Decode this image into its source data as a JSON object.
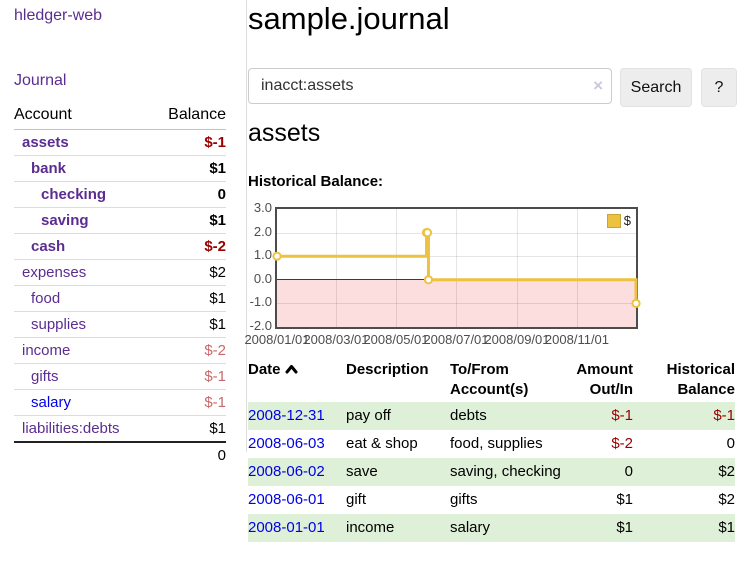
{
  "colors": {
    "link_purple": "#5c2d91",
    "link_blue": "#0000e6",
    "negative_strong": "#990000",
    "negative_soft": "#c86a6a",
    "row_shade_green": "#dff0d8",
    "chart_line_gold": "#edc240",
    "chart_negative_fill": "#fcdede",
    "chart_zero_line": "#8b1a1a",
    "button_bg": "#ededed"
  },
  "app": {
    "brand": "hledger-web",
    "nav": {
      "journal": "Journal"
    }
  },
  "sidebar": {
    "accounts_table": {
      "headers": {
        "account": "Account",
        "balance": "Balance"
      },
      "rows": [
        {
          "label": "assets",
          "balance": "$-1",
          "depth": 1,
          "bold": true,
          "neg": "strong"
        },
        {
          "label": "bank",
          "balance": "$1",
          "depth": 2,
          "bold": true,
          "neg": null
        },
        {
          "label": "checking",
          "balance": "0",
          "depth": 3,
          "bold": true,
          "neg": null
        },
        {
          "label": "saving",
          "balance": "$1",
          "depth": 3,
          "bold": true,
          "neg": null
        },
        {
          "label": "cash",
          "balance": "$-2",
          "depth": 2,
          "bold": true,
          "neg": "strong"
        },
        {
          "label": "expenses",
          "balance": "$2",
          "depth": 1,
          "bold": false,
          "neg": null
        },
        {
          "label": "food",
          "balance": "$1",
          "depth": 2,
          "bold": false,
          "neg": null
        },
        {
          "label": "supplies",
          "balance": "$1",
          "depth": 2,
          "bold": false,
          "neg": null
        },
        {
          "label": "income",
          "balance": "$-2",
          "depth": 1,
          "bold": false,
          "neg": "soft"
        },
        {
          "label": "gifts",
          "balance": "$-1",
          "depth": 2,
          "bold": false,
          "neg": "soft"
        },
        {
          "label": "salary",
          "balance": "$-1",
          "depth": 2,
          "bold": false,
          "neg": "soft",
          "unvisited": true
        },
        {
          "label": "liabilities:debts",
          "balance": "$1",
          "depth": 1,
          "bold": false,
          "neg": null
        }
      ],
      "total": "0"
    }
  },
  "main": {
    "page_title": "sample.journal",
    "search": {
      "value": "inacct:assets",
      "clear_label": "×",
      "search_button": "Search",
      "help_button": "?"
    },
    "account_heading": "assets",
    "section_label": "Historical Balance:",
    "register": {
      "headers": {
        "date": "Date",
        "description": "Description",
        "accounts_line1": "To/From",
        "accounts_line2": "Account(s)",
        "amount_line1": "Amount",
        "amount_line2": "Out/In",
        "balance_line1": "Historical",
        "balance_line2": "Balance"
      },
      "rows": [
        {
          "date": "2008-12-31",
          "description": "pay off",
          "accounts": "debts",
          "amount": "$-1",
          "amount_neg": true,
          "balance": "$-1",
          "balance_neg": true,
          "shade": true
        },
        {
          "date": "2008-06-03",
          "description": "eat & shop",
          "accounts": "food, supplies",
          "amount": "$-2",
          "amount_neg": true,
          "balance": "0",
          "balance_neg": false,
          "shade": false
        },
        {
          "date": "2008-06-02",
          "description": "save",
          "accounts": "saving, checking",
          "amount": "0",
          "amount_neg": false,
          "balance": "$2",
          "balance_neg": false,
          "shade": true
        },
        {
          "date": "2008-06-01",
          "description": "gift",
          "accounts": "gifts",
          "amount": "$1",
          "amount_neg": false,
          "balance": "$2",
          "balance_neg": false,
          "shade": false
        },
        {
          "date": "2008-01-01",
          "description": "income",
          "accounts": "salary",
          "amount": "$1",
          "amount_neg": false,
          "balance": "$1",
          "balance_neg": false,
          "shade": true
        }
      ]
    }
  },
  "chart_data": {
    "type": "line",
    "step": true,
    "title": "Historical Balance:",
    "x_range": [
      "2008-01-01",
      "2008-12-31"
    ],
    "ylim": [
      -2.0,
      3.0
    ],
    "yticks": [
      "3.0",
      "2.0",
      "1.0",
      "0.0",
      "-1.0",
      "-2.0"
    ],
    "xticks": [
      "2008/01/01",
      "2008/03/01",
      "2008/05/01",
      "2008/07/01",
      "2008/09/01",
      "2008/11/01"
    ],
    "grid": true,
    "legend_position": "top-right",
    "series": [
      {
        "name": "$",
        "color": "#edc240",
        "points": [
          {
            "x": "2008-01-01",
            "y": 1
          },
          {
            "x": "2008-06-01",
            "y": 2
          },
          {
            "x": "2008-06-02",
            "y": 2
          },
          {
            "x": "2008-06-03",
            "y": 0
          },
          {
            "x": "2008-12-31",
            "y": -1
          }
        ]
      }
    ],
    "negative_region_shaded": true
  }
}
